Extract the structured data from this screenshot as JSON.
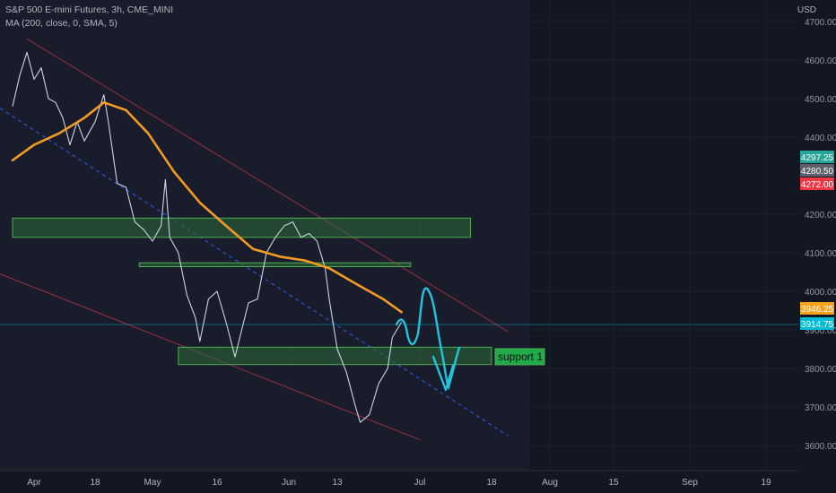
{
  "header": {
    "symbol_line": "S&P 500 E-mini Futures, 3h, CME_MINI",
    "indicator_line": "MA (200, close, 0, SMA, 5)",
    "currency": "USD"
  },
  "colors": {
    "background": "#131722",
    "price": "#d1d4dc",
    "ma": "#f59a23",
    "channel": "#9c2f3a",
    "midline": "#2962ff",
    "zone_fill": "#2e6b3a",
    "zone_stroke": "#4caf50",
    "drawing": "#23c3e0",
    "label_green": "#26a69a",
    "label_gray": "#5d606b",
    "label_red": "#f23645",
    "label_orange": "#f7a21b",
    "label_cyan": "#00bcd4"
  },
  "chart_data": {
    "type": "line",
    "title": "S&P 500 E-mini Futures, 3h, CME_MINI",
    "y_axis": {
      "range": [
        3550,
        4700
      ],
      "ticks": [
        "4700.00",
        "4600.00",
        "4500.00",
        "4400.00",
        "4200.00",
        "4100.00",
        "4000.00",
        "3900.00",
        "3800.00",
        "3700.00",
        "3600.00"
      ],
      "tick_values": [
        4700,
        4600,
        4500,
        4400,
        4200,
        4100,
        4000,
        3900,
        3800,
        3700,
        3600
      ]
    },
    "x_axis": {
      "ticks": [
        "Apr",
        "18",
        "May",
        "16",
        "Jun",
        "13",
        "Jul",
        "18",
        "Aug",
        "15",
        "Sep",
        "19"
      ],
      "tick_dates": [
        "2022-04-01",
        "2022-04-18",
        "2022-05-01",
        "2022-05-16",
        "2022-06-01",
        "2022-06-13",
        "2022-07-01",
        "2022-07-18",
        "2022-08-01",
        "2022-08-15",
        "2022-09-01",
        "2022-09-19"
      ],
      "range": [
        "2022-03-26",
        "2022-09-27"
      ]
    },
    "series": [
      {
        "kind": "price",
        "points": [
          [
            "2022-03-26",
            4480
          ],
          [
            "2022-03-28",
            4560
          ],
          [
            "2022-03-30",
            4620
          ],
          [
            "2022-04-01",
            4550
          ],
          [
            "2022-04-03",
            4580
          ],
          [
            "2022-04-05",
            4500
          ],
          [
            "2022-04-07",
            4490
          ],
          [
            "2022-04-09",
            4450
          ],
          [
            "2022-04-11",
            4380
          ],
          [
            "2022-04-13",
            4440
          ],
          [
            "2022-04-15",
            4390
          ],
          [
            "2022-04-18",
            4440
          ],
          [
            "2022-04-20",
            4510
          ],
          [
            "2022-04-21",
            4440
          ],
          [
            "2022-04-23",
            4280
          ],
          [
            "2022-04-25",
            4270
          ],
          [
            "2022-04-27",
            4180
          ],
          [
            "2022-04-29",
            4160
          ],
          [
            "2022-05-01",
            4130
          ],
          [
            "2022-05-03",
            4170
          ],
          [
            "2022-05-04",
            4290
          ],
          [
            "2022-05-05",
            4140
          ],
          [
            "2022-05-07",
            4100
          ],
          [
            "2022-05-09",
            3990
          ],
          [
            "2022-05-11",
            3930
          ],
          [
            "2022-05-12",
            3870
          ],
          [
            "2022-05-14",
            3980
          ],
          [
            "2022-05-16",
            4000
          ],
          [
            "2022-05-18",
            3920
          ],
          [
            "2022-05-20",
            3830
          ],
          [
            "2022-05-23",
            3970
          ],
          [
            "2022-05-25",
            3980
          ],
          [
            "2022-05-27",
            4100
          ],
          [
            "2022-05-29",
            4140
          ],
          [
            "2022-05-31",
            4170
          ],
          [
            "2022-06-02",
            4180
          ],
          [
            "2022-06-04",
            4140
          ],
          [
            "2022-06-06",
            4150
          ],
          [
            "2022-06-08",
            4130
          ],
          [
            "2022-06-10",
            4060
          ],
          [
            "2022-06-11",
            3980
          ],
          [
            "2022-06-13",
            3850
          ],
          [
            "2022-06-15",
            3790
          ],
          [
            "2022-06-17",
            3700
          ],
          [
            "2022-06-18",
            3660
          ],
          [
            "2022-06-20",
            3680
          ],
          [
            "2022-06-22",
            3760
          ],
          [
            "2022-06-24",
            3800
          ],
          [
            "2022-06-25",
            3880
          ],
          [
            "2022-06-27",
            3920
          ]
        ]
      },
      {
        "kind": "ma",
        "name": "MA (200, close, 0, SMA, 5)",
        "points": [
          [
            "2022-03-26",
            4340
          ],
          [
            "2022-04-01",
            4380
          ],
          [
            "2022-04-08",
            4410
          ],
          [
            "2022-04-15",
            4450
          ],
          [
            "2022-04-20",
            4490
          ],
          [
            "2022-04-25",
            4470
          ],
          [
            "2022-04-30",
            4410
          ],
          [
            "2022-05-06",
            4310
          ],
          [
            "2022-05-12",
            4230
          ],
          [
            "2022-05-18",
            4170
          ],
          [
            "2022-05-24",
            4110
          ],
          [
            "2022-05-30",
            4090
          ],
          [
            "2022-06-05",
            4080
          ],
          [
            "2022-06-11",
            4060
          ],
          [
            "2022-06-17",
            4020
          ],
          [
            "2022-06-23",
            3980
          ],
          [
            "2022-06-27",
            3946
          ]
        ]
      }
    ],
    "price_labels": [
      {
        "value": "4297.25",
        "role": "green"
      },
      {
        "value": "4280.50",
        "role": "gray"
      },
      {
        "value": "4272.00",
        "role": "red"
      },
      {
        "value": "3946.25",
        "role": "orange"
      },
      {
        "value": "3914.75",
        "role": "cyan"
      }
    ],
    "zones": [
      {
        "from": "2022-03-26",
        "to": "2022-07-13",
        "low": 4140,
        "high": 4190
      },
      {
        "from": "2022-04-28",
        "to": "2022-06-29",
        "low": 4064,
        "high": 4074
      },
      {
        "from": "2022-05-07",
        "to": "2022-07-18",
        "low": 3810,
        "high": 3855
      }
    ],
    "annotations": [
      {
        "text": "support 1",
        "date": "2022-07-14",
        "value": 3830
      }
    ]
  }
}
